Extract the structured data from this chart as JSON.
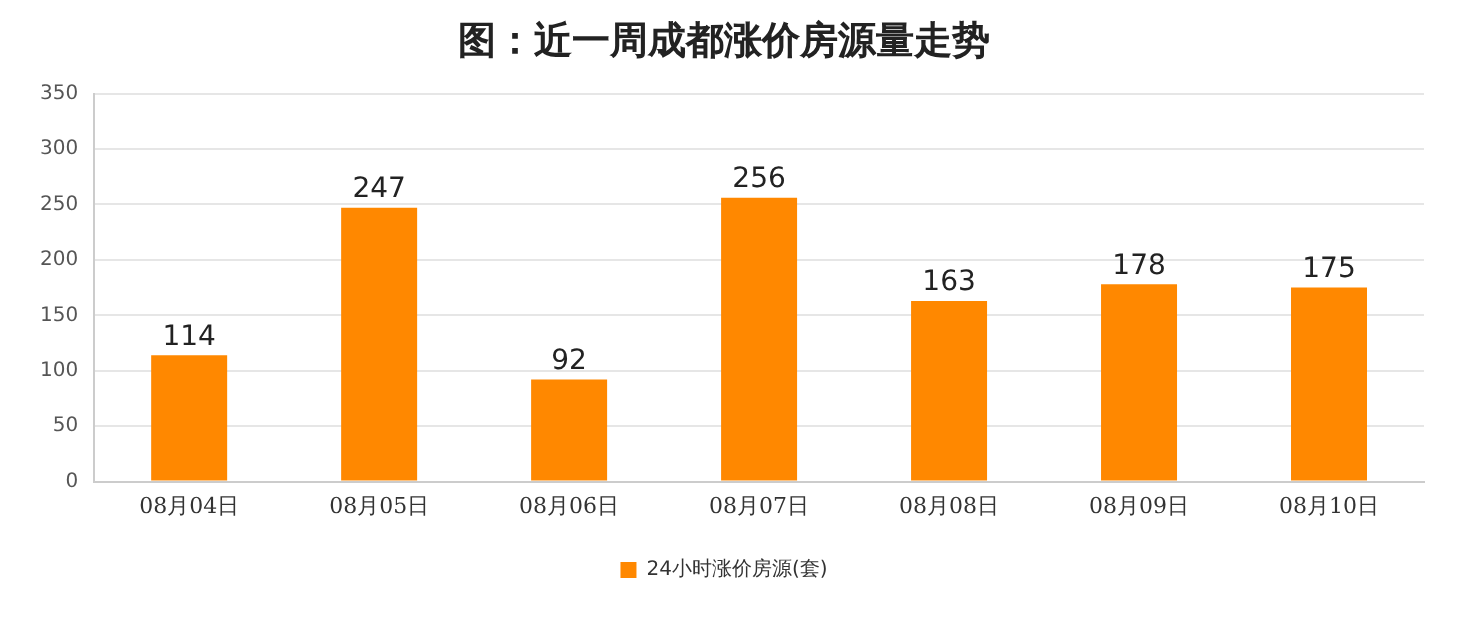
{
  "chart_data": {
    "type": "bar",
    "title": "图：近一周成都涨价房源量走势",
    "categories": [
      "08月04日",
      "08月05日",
      "08月06日",
      "08月07日",
      "08月08日",
      "08月09日",
      "08月10日"
    ],
    "series": [
      {
        "name": "24小时涨价房源(套)",
        "color": "#ff8800",
        "values": [
          114,
          247,
          92,
          256,
          163,
          178,
          175
        ]
      }
    ],
    "ylim": [
      0,
      350
    ],
    "yticks": [
      0,
      50,
      100,
      150,
      200,
      250,
      300,
      350
    ],
    "grid": "y",
    "legend": "bottom",
    "data_labels": true
  }
}
